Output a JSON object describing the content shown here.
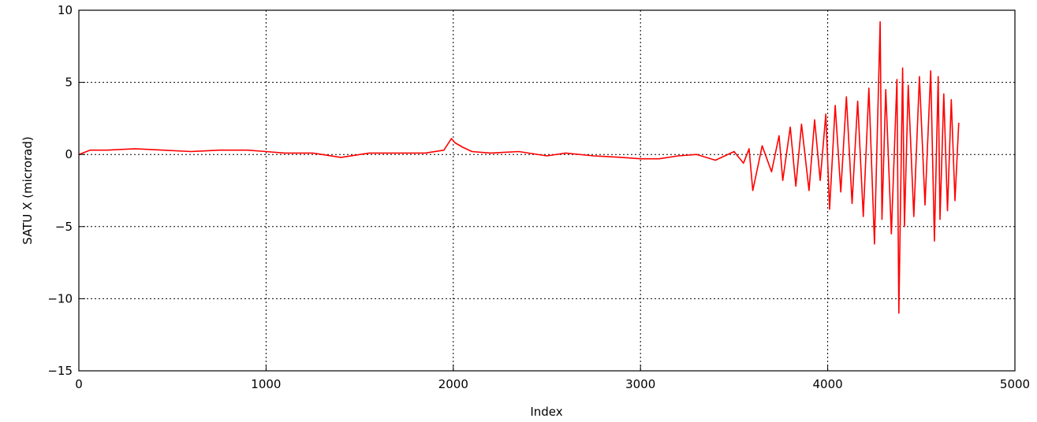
{
  "chart_data": {
    "type": "line",
    "title": "",
    "xlabel": "Index",
    "ylabel": "SATU X (microrad)",
    "xlim": [
      0,
      5000
    ],
    "ylim": [
      -15,
      10
    ],
    "xticks": [
      0,
      1000,
      2000,
      3000,
      4000,
      5000
    ],
    "yticks": [
      -15,
      -10,
      -5,
      0,
      5,
      10
    ],
    "xtick_labels": [
      "0",
      "1000",
      "2000",
      "3000",
      "4000",
      "5000"
    ],
    "ytick_labels": [
      "−15",
      "−10",
      "−5",
      "0",
      "5",
      "10"
    ],
    "grid": true,
    "legend": "none",
    "series": [
      {
        "color": "#ff0000",
        "x": [
          0,
          60,
          150,
          300,
          450,
          600,
          750,
          900,
          1000,
          1100,
          1250,
          1400,
          1550,
          1700,
          1850,
          1950,
          1990,
          2010,
          2050,
          2100,
          2200,
          2350,
          2500,
          2600,
          2750,
          2900,
          3000,
          3100,
          3200,
          3300,
          3400,
          3500,
          3550,
          3580,
          3600,
          3650,
          3700,
          3740,
          3760,
          3800,
          3830,
          3860,
          3900,
          3930,
          3960,
          3990,
          4010,
          4040,
          4070,
          4100,
          4130,
          4160,
          4190,
          4220,
          4250,
          4280,
          4290,
          4310,
          4340,
          4370,
          4380,
          4400,
          4410,
          4430,
          4460,
          4490,
          4520,
          4550,
          4570,
          4590,
          4600,
          4620,
          4640,
          4660,
          4680,
          4700
        ],
        "y": [
          0,
          0.3,
          0.3,
          0.4,
          0.3,
          0.2,
          0.3,
          0.3,
          0.2,
          0.1,
          0.1,
          -0.2,
          0.1,
          0.1,
          0.1,
          0.3,
          1.1,
          0.8,
          0.5,
          0.2,
          0.1,
          0.2,
          -0.1,
          0.1,
          -0.1,
          -0.2,
          -0.3,
          -0.3,
          -0.1,
          0,
          -0.4,
          0.2,
          -0.6,
          0.4,
          -2.5,
          0.6,
          -1.2,
          1.3,
          -1.8,
          1.9,
          -2.2,
          2.1,
          -2.5,
          2.4,
          -1.8,
          2.8,
          -3.8,
          3.4,
          -2.6,
          4.0,
          -3.4,
          3.7,
          -4.3,
          4.6,
          -6.2,
          9.2,
          -4.5,
          4.5,
          -5.5,
          5.2,
          -11.0,
          6.0,
          -5.0,
          4.8,
          -4.3,
          5.4,
          -3.5,
          5.8,
          -6.0,
          5.4,
          -4.5,
          4.2,
          -3.9,
          3.8,
          -3.2,
          2.2
        ]
      }
    ]
  }
}
